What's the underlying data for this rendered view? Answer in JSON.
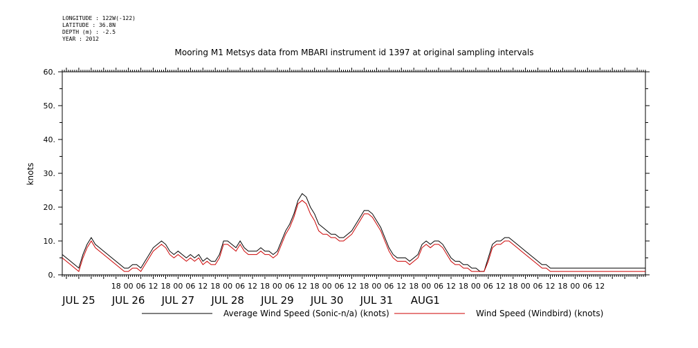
{
  "metadata": {
    "longitude": "LONGITUDE : 122W(-122)",
    "latitude": "LATITUDE : 36.8N",
    "depth": "DEPTH (m) : -2.5",
    "year": "YEAR : 2012"
  },
  "chart_data": {
    "type": "line",
    "title": "Mooring M1 Metsys data from MBARI instrument id 1397 at original sampling intervals",
    "ylabel": "knots",
    "ylim": [
      0,
      60
    ],
    "yticks": [
      "0.",
      "10.",
      "20.",
      "30.",
      "40.",
      "50.",
      "60."
    ],
    "xlim_hours": [
      -8,
      274
    ],
    "xtick_labels": [
      {
        "h": 18,
        "label": "18"
      },
      {
        "h": 24,
        "label": "00"
      },
      {
        "h": 30,
        "label": "06"
      },
      {
        "h": 36,
        "label": "12"
      },
      {
        "h": 42,
        "label": "18"
      },
      {
        "h": 48,
        "label": "00"
      },
      {
        "h": 54,
        "label": "06"
      },
      {
        "h": 60,
        "label": "12"
      },
      {
        "h": 66,
        "label": "18"
      },
      {
        "h": 72,
        "label": "00"
      },
      {
        "h": 78,
        "label": "06"
      },
      {
        "h": 84,
        "label": "12"
      },
      {
        "h": 90,
        "label": "18"
      },
      {
        "h": 96,
        "label": "00"
      },
      {
        "h": 102,
        "label": "06"
      },
      {
        "h": 108,
        "label": "12"
      },
      {
        "h": 114,
        "label": "18"
      },
      {
        "h": 120,
        "label": "00"
      },
      {
        "h": 126,
        "label": "06"
      },
      {
        "h": 132,
        "label": "12"
      },
      {
        "h": 138,
        "label": "18"
      },
      {
        "h": 144,
        "label": "00"
      },
      {
        "h": 150,
        "label": "06"
      },
      {
        "h": 156,
        "label": "12"
      },
      {
        "h": 162,
        "label": "18"
      },
      {
        "h": 168,
        "label": "00"
      },
      {
        "h": 174,
        "label": "06"
      },
      {
        "h": 180,
        "label": "12"
      },
      {
        "h": 186,
        "label": "18"
      },
      {
        "h": 192,
        "label": "00"
      },
      {
        "h": 198,
        "label": "06"
      },
      {
        "h": 204,
        "label": "12"
      },
      {
        "h": 210,
        "label": "18"
      },
      {
        "h": 216,
        "label": "00"
      },
      {
        "h": 222,
        "label": "06"
      },
      {
        "h": 228,
        "label": "12"
      },
      {
        "h": 234,
        "label": "18"
      },
      {
        "h": 240,
        "label": "00"
      },
      {
        "h": 246,
        "label": "06"
      },
      {
        "h": 252,
        "label": "12"
      }
    ],
    "date_labels": [
      {
        "h": 0,
        "label": "JUL 25"
      },
      {
        "h": 24,
        "label": "JUL 26"
      },
      {
        "h": 48,
        "label": "JUL 27"
      },
      {
        "h": 72,
        "label": "JUL 28"
      },
      {
        "h": 96,
        "label": "JUL 29"
      },
      {
        "h": 120,
        "label": "JUL 30"
      },
      {
        "h": 144,
        "label": "JUL 31"
      },
      {
        "h": 168,
        "label": "AUG"
      },
      {
        "h": 168.3,
        "label": "1"
      }
    ],
    "series": [
      {
        "name": "Average Wind Speed (Sonic-n/a) (knots)",
        "color": "#000000",
        "x": [
          -8,
          -6,
          -4,
          -2,
          0,
          2,
          4,
          6,
          8,
          10,
          12,
          14,
          16,
          18,
          20,
          22,
          24,
          26,
          28,
          30,
          32,
          34,
          36,
          38,
          40,
          42,
          44,
          46,
          48,
          50,
          52,
          54,
          56,
          58,
          60,
          62,
          64,
          66,
          68,
          70,
          72,
          74,
          76,
          78,
          80,
          82,
          84,
          86,
          88,
          90,
          92,
          94,
          96,
          98,
          100,
          102,
          104,
          106,
          108,
          110,
          112,
          114,
          116,
          118,
          120,
          122,
          124,
          126,
          128,
          130,
          132,
          134,
          136,
          138,
          140,
          142,
          144,
          146,
          148,
          150,
          152,
          154,
          156,
          158,
          160,
          162,
          164,
          166,
          168,
          170,
          172,
          174,
          176,
          178,
          180,
          182,
          184,
          186,
          188,
          190,
          192,
          194,
          196,
          198,
          200,
          202,
          204,
          206,
          208,
          210,
          212,
          214,
          216,
          218,
          220,
          222,
          224,
          226,
          228,
          230,
          232,
          234,
          236,
          238,
          240,
          242,
          244,
          246,
          248,
          250,
          252,
          254,
          256,
          258,
          260,
          262,
          264,
          266,
          268,
          270,
          272,
          274
        ],
        "values": [
          6,
          5,
          4,
          3,
          2,
          6,
          9,
          11,
          9,
          8,
          7,
          6,
          5,
          4,
          3,
          2,
          2,
          3,
          3,
          2,
          4,
          6,
          8,
          9,
          10,
          9,
          7,
          6,
          7,
          6,
          5,
          6,
          5,
          6,
          4,
          5,
          4,
          4,
          6,
          10,
          10,
          9,
          8,
          10,
          8,
          7,
          7,
          7,
          8,
          7,
          7,
          6,
          7,
          10,
          13,
          15,
          18,
          22,
          24,
          23,
          20,
          18,
          15,
          14,
          13,
          12,
          12,
          11,
          11,
          12,
          13,
          15,
          17,
          19,
          19,
          18,
          16,
          14,
          11,
          8,
          6,
          5,
          5,
          5,
          4,
          5,
          6,
          9,
          10,
          9,
          10,
          10,
          9,
          7,
          5,
          4,
          4,
          3,
          3,
          2,
          2,
          1,
          1,
          5,
          9,
          10,
          10,
          11,
          11,
          10,
          9,
          8,
          7,
          6,
          5,
          4,
          3,
          3,
          2,
          2,
          2,
          2,
          2,
          2,
          2,
          2,
          2,
          2,
          2,
          2,
          2,
          2,
          2,
          2,
          2,
          2,
          2,
          2,
          2,
          2,
          2,
          2
        ]
      },
      {
        "name": "Wind Speed (Windbird) (knots)",
        "color": "#cc0000",
        "x": [
          -8,
          -6,
          -4,
          -2,
          0,
          2,
          4,
          6,
          8,
          10,
          12,
          14,
          16,
          18,
          20,
          22,
          24,
          26,
          28,
          30,
          32,
          34,
          36,
          38,
          40,
          42,
          44,
          46,
          48,
          50,
          52,
          54,
          56,
          58,
          60,
          62,
          64,
          66,
          68,
          70,
          72,
          74,
          76,
          78,
          80,
          82,
          84,
          86,
          88,
          90,
          92,
          94,
          96,
          98,
          100,
          102,
          104,
          106,
          108,
          110,
          112,
          114,
          116,
          118,
          120,
          122,
          124,
          126,
          128,
          130,
          132,
          134,
          136,
          138,
          140,
          142,
          144,
          146,
          148,
          150,
          152,
          154,
          156,
          158,
          160,
          162,
          164,
          166,
          168,
          170,
          172,
          174,
          176,
          178,
          180,
          182,
          184,
          186,
          188,
          190,
          192,
          194,
          196,
          198,
          200,
          202,
          204,
          206,
          208,
          210,
          212,
          214,
          216,
          218,
          220,
          222,
          224,
          226,
          228,
          230,
          232,
          234,
          236,
          238,
          240,
          242,
          244,
          246,
          248,
          250,
          252,
          254,
          256,
          258,
          260,
          262,
          264,
          266,
          268,
          270,
          272,
          274
        ],
        "values": [
          5,
          4,
          3,
          2,
          1,
          5,
          8,
          10,
          8,
          7,
          6,
          5,
          4,
          3,
          2,
          1,
          1,
          2,
          2,
          1,
          3,
          5,
          7,
          8,
          9,
          8,
          6,
          5,
          6,
          5,
          4,
          5,
          4,
          5,
          3,
          4,
          3,
          3,
          5,
          9,
          9,
          8,
          7,
          9,
          7,
          6,
          6,
          6,
          7,
          6,
          6,
          5,
          6,
          9,
          12,
          14,
          17,
          21,
          22,
          21,
          18,
          16,
          13,
          12,
          12,
          11,
          11,
          10,
          10,
          11,
          12,
          14,
          16,
          18,
          18,
          17,
          15,
          13,
          10,
          7,
          5,
          4,
          4,
          4,
          3,
          4,
          5,
          8,
          9,
          8,
          9,
          9,
          8,
          6,
          4,
          3,
          3,
          2,
          2,
          1,
          1,
          1,
          1,
          4,
          8,
          9,
          9,
          10,
          10,
          9,
          8,
          7,
          6,
          5,
          4,
          3,
          2,
          2,
          1,
          1,
          1,
          1,
          1,
          1,
          1,
          1,
          1,
          1,
          1,
          1,
          1,
          1,
          1,
          1,
          1,
          1,
          1,
          1,
          1,
          1,
          1,
          1
        ]
      }
    ]
  },
  "legend": {
    "series1_label": "Average Wind Speed (Sonic-n/a) (knots)",
    "series2_label": "Wind Speed (Windbird) (knots)"
  }
}
